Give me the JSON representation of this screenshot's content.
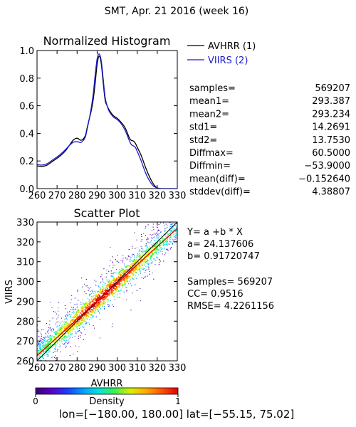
{
  "title": "SMT,  Apr. 21 2016 (week 16)",
  "region_label": "lon=[−180.00, 180.00] lat=[−55.15, 75.02]",
  "colors": {
    "avhrr": "#000000",
    "viirs": "#1a1acc",
    "fit_line": "#d40000",
    "one_to_one": "#000000"
  },
  "chart_data": [
    {
      "type": "line",
      "title": "Normalized Histogram",
      "xlim": [
        260,
        330
      ],
      "ylim": [
        0.0,
        1.0
      ],
      "xticks": [
        260,
        270,
        280,
        290,
        300,
        310,
        320,
        330
      ],
      "xtick_labels": [
        "260",
        "270",
        "280",
        "290",
        "300",
        "310",
        "320",
        "330"
      ],
      "yticks": [
        0.0,
        0.2,
        0.4,
        0.6,
        0.8,
        1.0
      ],
      "ytick_labels": [
        "0.0",
        "0.2",
        "0.4",
        "0.6",
        "0.8",
        "1.0"
      ],
      "legend_position": "top-right",
      "series": [
        {
          "name": "AVHRR (1)",
          "x": [
            260,
            262,
            265,
            268,
            271,
            274,
            276,
            278,
            280,
            282,
            284,
            285,
            286,
            287,
            288,
            289,
            290,
            291,
            292,
            293,
            294,
            295,
            296,
            298,
            300,
            302,
            304,
            306,
            307,
            308,
            309,
            310,
            312,
            314,
            316,
            318,
            320,
            322,
            324,
            326,
            330
          ],
          "y": [
            0.165,
            0.16,
            0.17,
            0.2,
            0.23,
            0.27,
            0.31,
            0.35,
            0.365,
            0.35,
            0.38,
            0.44,
            0.5,
            0.56,
            0.64,
            0.76,
            0.9,
            0.96,
            0.91,
            0.77,
            0.64,
            0.6,
            0.57,
            0.53,
            0.51,
            0.48,
            0.44,
            0.37,
            0.35,
            0.345,
            0.33,
            0.3,
            0.24,
            0.16,
            0.09,
            0.035,
            0.005,
            0.0,
            0.0,
            0.0,
            0.0
          ]
        },
        {
          "name": "VIIRS (2)",
          "x": [
            260,
            262,
            265,
            268,
            271,
            274,
            276,
            278,
            280,
            282,
            284,
            285,
            286,
            287,
            288,
            289,
            290,
            291,
            292,
            293,
            294,
            295,
            296,
            298,
            300,
            302,
            304,
            306,
            307,
            308,
            309,
            310,
            312,
            314,
            316,
            318,
            320,
            322,
            324,
            326,
            330
          ],
          "y": [
            0.175,
            0.17,
            0.18,
            0.21,
            0.24,
            0.28,
            0.31,
            0.335,
            0.34,
            0.335,
            0.37,
            0.43,
            0.5,
            0.58,
            0.68,
            0.82,
            0.94,
            0.975,
            0.93,
            0.8,
            0.66,
            0.6,
            0.56,
            0.52,
            0.5,
            0.47,
            0.42,
            0.35,
            0.32,
            0.31,
            0.3,
            0.27,
            0.2,
            0.12,
            0.06,
            0.02,
            0.005,
            0.0,
            0.0,
            0.0,
            0.0
          ]
        }
      ],
      "stats": [
        {
          "label": "samples=",
          "value": "569207"
        },
        {
          "label": "mean1=",
          "value": "293.387"
        },
        {
          "label": "mean2=",
          "value": "293.234"
        },
        {
          "label": "std1=",
          "value": "14.2691"
        },
        {
          "label": "std2=",
          "value": "13.7530"
        },
        {
          "label": "Diffmax=",
          "value": "60.5000"
        },
        {
          "label": "Diffmin=",
          "value": "−53.9000"
        },
        {
          "label": "mean(diff)=",
          "value": "−0.152640"
        },
        {
          "label": "stddev(diff)=",
          "value": "4.38807"
        }
      ]
    },
    {
      "type": "heatmap",
      "title": "Scatter Plot",
      "xlabel": "AVHRR",
      "ylabel": "VIIRS",
      "xlim": [
        260,
        330
      ],
      "ylim": [
        260,
        330
      ],
      "xticks": [
        260,
        270,
        280,
        290,
        300,
        310,
        320,
        330
      ],
      "xtick_labels": [
        "260",
        "270",
        "280",
        "290",
        "300",
        "310",
        "320",
        "330"
      ],
      "yticks": [
        260,
        270,
        280,
        290,
        300,
        310,
        320,
        330
      ],
      "ytick_labels": [
        "260",
        "270",
        "280",
        "290",
        "300",
        "310",
        "320",
        "330"
      ],
      "fit": {
        "intercept": 24.137606,
        "slope": 0.91720747
      },
      "one_to_one_line": true,
      "regression_text": [
        "Y= a +b * X",
        "a= 24.137606",
        "b= 0.91720747"
      ],
      "stats_text": [
        "Samples= 569207",
        "CC=  0.9516",
        "RMSE= 4.2261156"
      ],
      "colorbar": {
        "label": "Density",
        "min_label": "0",
        "max_label": "1",
        "range": [
          0,
          1
        ],
        "colors": [
          "#3c0078",
          "#5a00c8",
          "#1e3cff",
          "#00a0ff",
          "#00e6dc",
          "#3cf050",
          "#dcf000",
          "#ffaa00",
          "#ff5000",
          "#e60000"
        ]
      }
    }
  ]
}
